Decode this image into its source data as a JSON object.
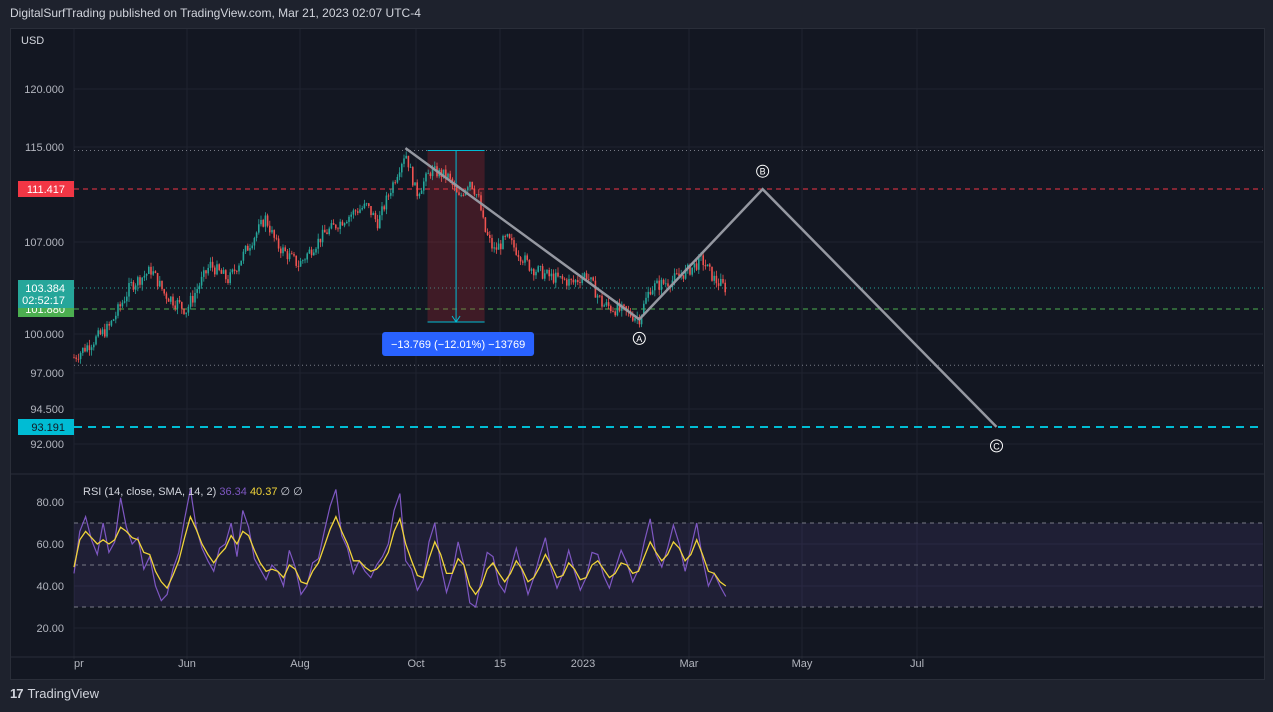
{
  "header": {
    "publish_line": "DigitalSurfTrading published on TradingView.com, Mar 21, 2023 02:07 UTC-4"
  },
  "footer": {
    "brand": "TradingView",
    "logo_glyph": "17"
  },
  "colors": {
    "background": "#131722",
    "up": "#26a69a",
    "down": "#ef5350",
    "rsi": "#7e57c2",
    "rsi_ma": "#f0d43a",
    "red_line": "#f23645",
    "green_line": "#4caf50",
    "cyan_line": "#00bcd4",
    "wave": "#9598a1",
    "measure": "#2962ff"
  },
  "chart_data": [
    {
      "type": "candlestick",
      "title": "",
      "currency_label": "USD",
      "x_ticks": [
        "pr",
        "Jun",
        "Aug",
        "Oct",
        "15",
        "2023",
        "Mar",
        "May",
        "Jul"
      ],
      "y_ticks": [
        "120.000",
        "115.000",
        "107.000",
        "100.000",
        "97.000",
        "94.500",
        "92.000"
      ],
      "y_tick_values": [
        120.0,
        115.0,
        107.0,
        100.0,
        97.0,
        94.5,
        92.0
      ],
      "close_path": [
        {
          "date": "2022-04-01",
          "close": 98.2
        },
        {
          "date": "2022-04-20",
          "close": 100.5
        },
        {
          "date": "2022-05-02",
          "close": 103.6
        },
        {
          "date": "2022-05-13",
          "close": 104.8
        },
        {
          "date": "2022-05-20",
          "close": 103.0
        },
        {
          "date": "2022-06-01",
          "close": 101.8
        },
        {
          "date": "2022-06-14",
          "close": 105.2
        },
        {
          "date": "2022-06-24",
          "close": 104.0
        },
        {
          "date": "2022-07-14",
          "close": 109.0
        },
        {
          "date": "2022-07-20",
          "close": 106.8
        },
        {
          "date": "2022-08-01",
          "close": 105.2
        },
        {
          "date": "2022-08-15",
          "close": 107.7
        },
        {
          "date": "2022-09-01",
          "close": 109.6
        },
        {
          "date": "2022-09-07",
          "close": 110.0
        },
        {
          "date": "2022-09-13",
          "close": 108.6
        },
        {
          "date": "2022-09-28",
          "close": 114.6
        },
        {
          "date": "2022-10-04",
          "close": 111.0
        },
        {
          "date": "2022-10-12",
          "close": 113.0
        },
        {
          "date": "2022-10-21",
          "close": 112.5
        },
        {
          "date": "2022-10-27",
          "close": 110.6
        },
        {
          "date": "2022-11-02",
          "close": 112.2
        },
        {
          "date": "2022-11-07",
          "close": 110.5
        },
        {
          "date": "2022-11-10",
          "close": 108.0
        },
        {
          "date": "2022-11-15",
          "close": 106.3
        },
        {
          "date": "2022-11-22",
          "close": 107.3
        },
        {
          "date": "2022-12-05",
          "close": 105.0
        },
        {
          "date": "2022-12-15",
          "close": 104.3
        },
        {
          "date": "2022-12-28",
          "close": 103.8
        },
        {
          "date": "2023-01-04",
          "close": 104.5
        },
        {
          "date": "2023-01-13",
          "close": 102.2
        },
        {
          "date": "2023-01-26",
          "close": 101.6
        },
        {
          "date": "2023-02-02",
          "close": 101.2
        },
        {
          "date": "2023-02-08",
          "close": 103.4
        },
        {
          "date": "2023-02-20",
          "close": 104.0
        },
        {
          "date": "2023-03-02",
          "close": 104.9
        },
        {
          "date": "2023-03-08",
          "close": 105.6
        },
        {
          "date": "2023-03-15",
          "close": 104.0
        },
        {
          "date": "2023-03-21",
          "close": 103.4
        }
      ],
      "last_price": "103.384",
      "countdown": "02:52:17",
      "price_labels": [
        {
          "text": "111.417",
          "price": 111.417,
          "color": "#f23645",
          "line": "dashed"
        },
        {
          "text": "101.880",
          "price": 101.88,
          "color": "#4caf50",
          "line": "dashed"
        },
        {
          "text": "93.191",
          "price": 93.191,
          "color": "#00bcd4",
          "line": "dashed-thick"
        }
      ],
      "dotted_levels": [
        114.7,
        97.6
      ],
      "measure": {
        "from_date": "2022-10-10",
        "to_date": "2022-11-10",
        "top": 114.7,
        "bottom": 100.9,
        "label": "−13.769 (−12.01%) −13769"
      },
      "wave_projection": [
        {
          "date": "2022-09-28",
          "price": 114.9,
          "label": ""
        },
        {
          "date": "2023-02-02",
          "price": 101.1,
          "label": "A"
        },
        {
          "date": "2023-04-10",
          "price": 111.4,
          "label": "B"
        },
        {
          "date": "2023-08-15",
          "price": 93.2,
          "label": "C"
        }
      ]
    },
    {
      "type": "line",
      "title": "",
      "legend_name": "RSI (14, close, SMA, 14, 2)",
      "legend_rsi": "36.34",
      "legend_ma": "40.37",
      "legend_extra": [
        "∅",
        "∅"
      ],
      "y_ticks": [
        "80.00",
        "60.00",
        "40.00",
        "20.00"
      ],
      "y_tick_values": [
        80,
        60,
        40,
        20
      ],
      "band": [
        30,
        70
      ],
      "midline": 50,
      "series": [
        {
          "name": "RSI",
          "values": [
            46,
            66,
            73,
            62,
            55,
            70,
            56,
            61,
            82,
            68,
            60,
            63,
            48,
            54,
            40,
            33,
            36,
            48,
            56,
            72,
            86,
            68,
            58,
            52,
            47,
            58,
            60,
            70,
            54,
            76,
            68,
            53,
            48,
            43,
            50,
            47,
            40,
            57,
            49,
            36,
            40,
            51,
            53,
            66,
            78,
            86,
            64,
            58,
            46,
            52,
            47,
            44,
            50,
            54,
            60,
            76,
            84,
            52,
            48,
            38,
            43,
            61,
            70,
            50,
            37,
            46,
            61,
            50,
            32,
            30,
            43,
            56,
            54,
            41,
            37,
            48,
            58,
            47,
            36,
            44,
            54,
            63,
            48,
            39,
            46,
            57,
            47,
            38,
            44,
            56,
            55,
            45,
            39,
            48,
            57,
            51,
            42,
            48,
            61,
            72,
            55,
            49,
            58,
            69,
            60,
            47,
            58,
            70,
            53,
            40,
            46,
            40,
            35
          ]
        },
        {
          "name": "RSI MA",
          "values": [
            49,
            62,
            66,
            63,
            60,
            62,
            60,
            62,
            68,
            66,
            63,
            62,
            56,
            55,
            47,
            42,
            39,
            45,
            52,
            63,
            73,
            67,
            60,
            55,
            51,
            55,
            58,
            64,
            60,
            66,
            64,
            57,
            51,
            47,
            48,
            47,
            44,
            50,
            48,
            42,
            41,
            47,
            51,
            59,
            67,
            73,
            66,
            60,
            52,
            52,
            49,
            47,
            48,
            51,
            56,
            66,
            72,
            60,
            52,
            45,
            44,
            53,
            61,
            55,
            46,
            46,
            53,
            50,
            40,
            36,
            40,
            48,
            51,
            46,
            42,
            46,
            52,
            48,
            42,
            44,
            49,
            55,
            50,
            44,
            45,
            51,
            48,
            43,
            44,
            50,
            52,
            48,
            44,
            46,
            51,
            50,
            46,
            47,
            54,
            61,
            56,
            52,
            55,
            61,
            58,
            52,
            55,
            62,
            55,
            47,
            46,
            42,
            40
          ]
        }
      ]
    }
  ]
}
